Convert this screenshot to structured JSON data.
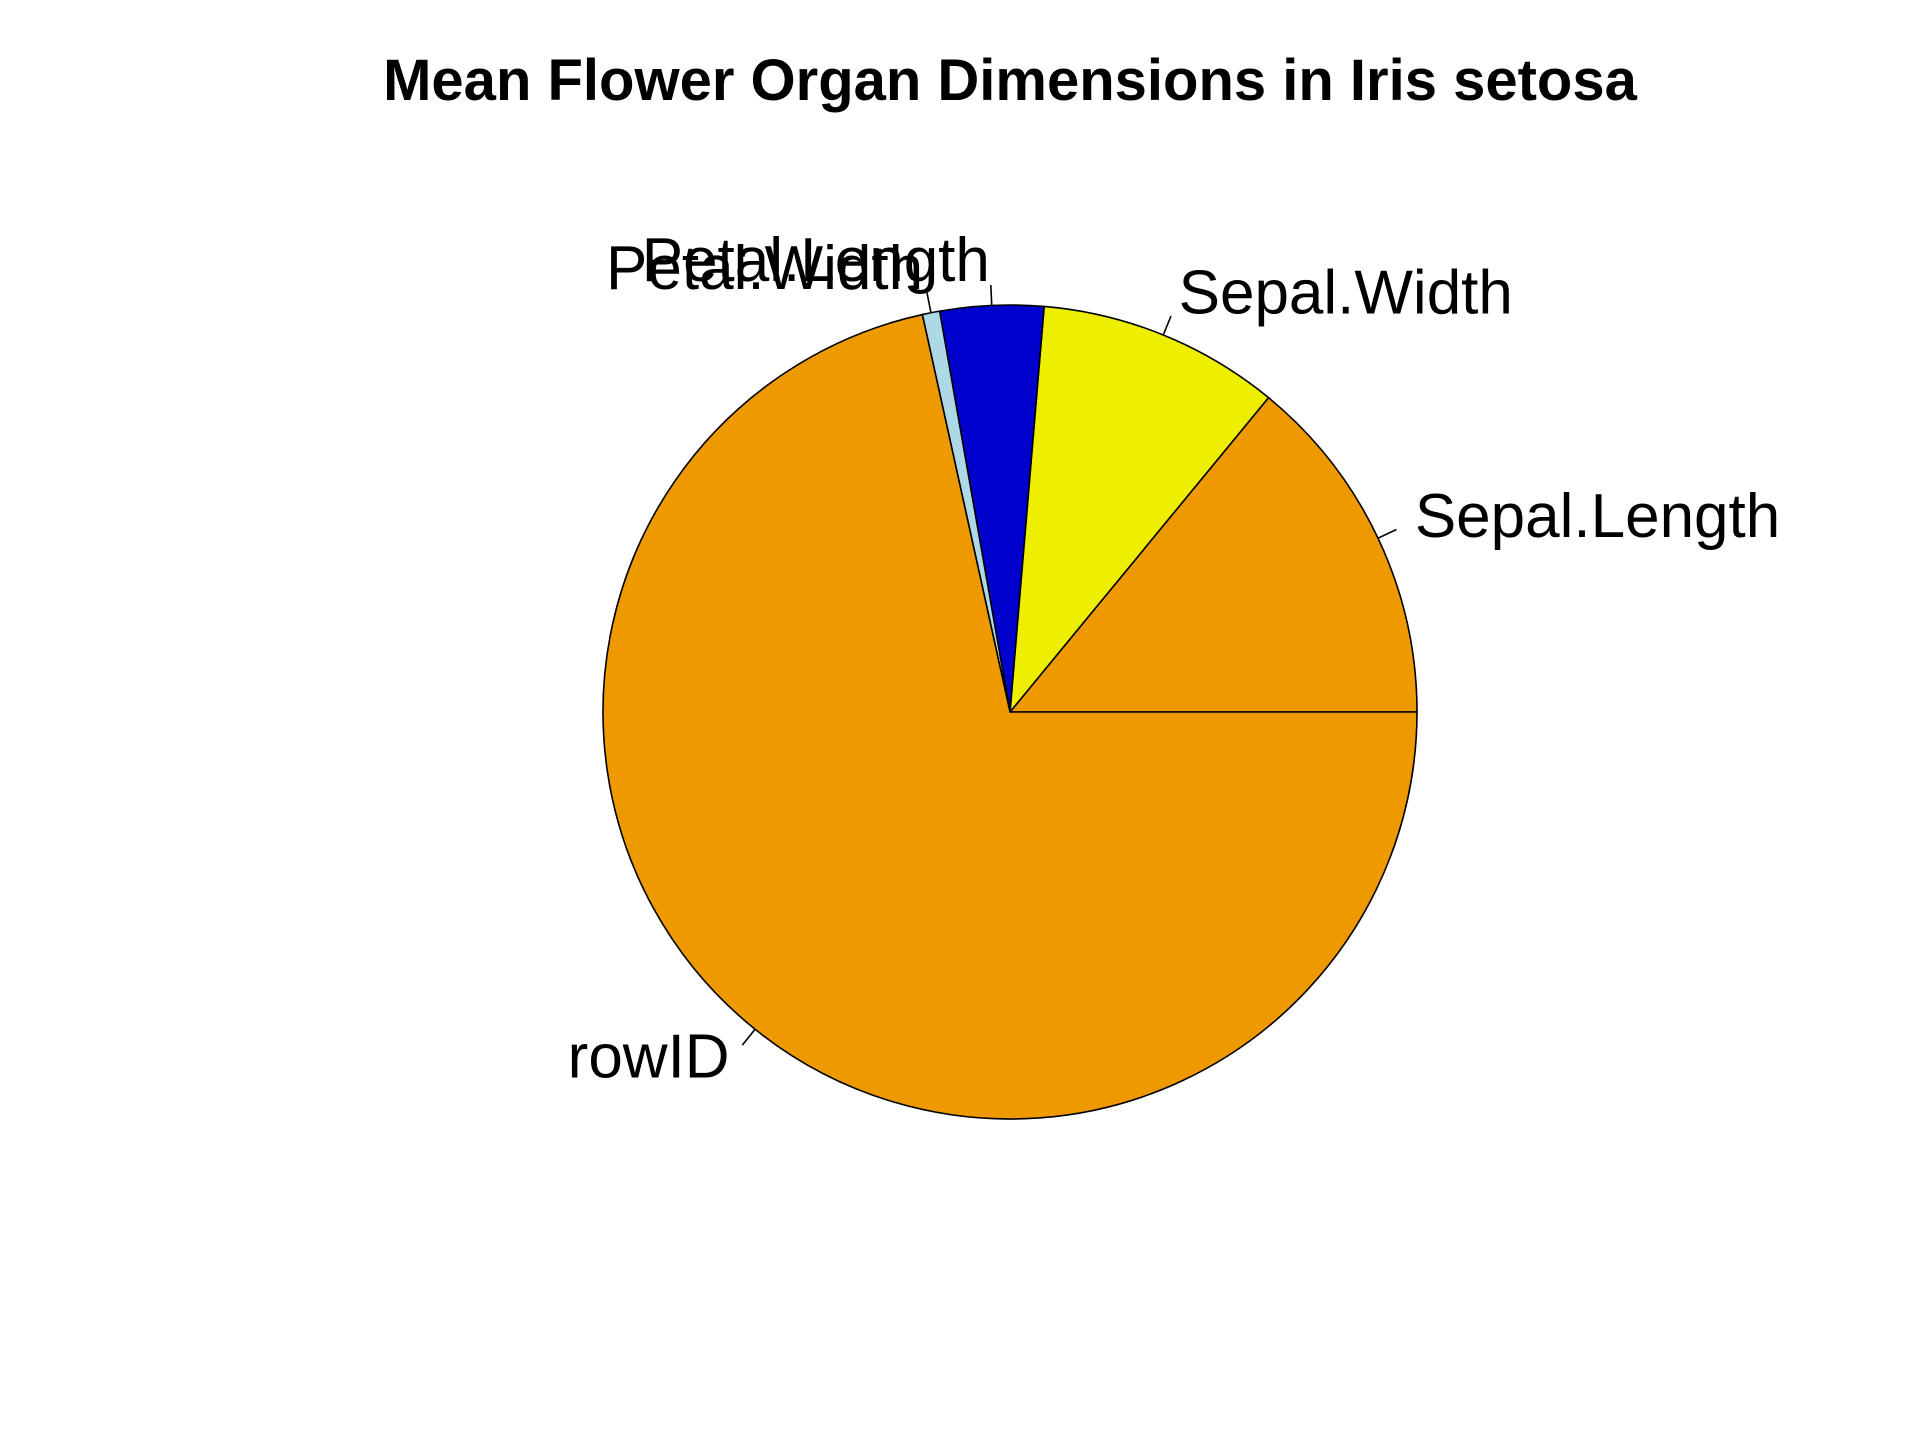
{
  "chart_data": {
    "type": "pie",
    "title": "Mean Flower Organ Dimensions in Iris setosa",
    "slices": [
      {
        "label": "Sepal.Length",
        "value": 5.006,
        "color": "#EE9900"
      },
      {
        "label": "Sepal.Width",
        "value": 3.428,
        "color": "#EEEE00"
      },
      {
        "label": "Petal.Length",
        "value": 1.462,
        "color": "#0000CD"
      },
      {
        "label": "Petal.Width",
        "value": 0.246,
        "color": "#ADD8E6"
      },
      {
        "label": "rowID",
        "value": 25.5,
        "color": "#EE9900"
      }
    ],
    "start_angle_deg": 0,
    "direction": "counterclockwise"
  }
}
